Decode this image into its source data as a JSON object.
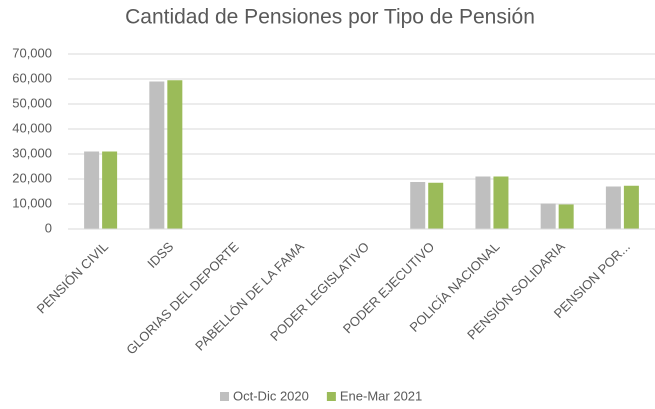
{
  "chart_data": {
    "type": "bar",
    "title": "Cantidad de Pensiones por Tipo de Pensión",
    "categories": [
      "PENSIÓN CIVIL",
      "IDSS",
      "GLORIAS DEL DEPORTE",
      "PABELLÓN DE LA FAMA",
      "PODER LEGISLATIVO",
      "PODER EJECUTIVO",
      "POLICÍA NACIONAL",
      "PENSIÓN SOLIDARIA",
      "PENSION POR..."
    ],
    "series": [
      {
        "name": "Oct-Dic 2020",
        "color": "#bfbfbf",
        "values": [
          31000,
          59000,
          0,
          0,
          0,
          18800,
          21000,
          10200,
          17000
        ]
      },
      {
        "name": "Ene-Mar 2021",
        "color": "#9bbb59",
        "values": [
          31000,
          59500,
          0,
          0,
          0,
          18500,
          21000,
          9800,
          17300
        ]
      }
    ],
    "ylim": [
      0,
      70000
    ],
    "yticks": [
      0,
      {
        "value": 10000,
        "label": "10,000"
      },
      {
        "value": 20000,
        "label": "20,000"
      },
      {
        "value": 30000,
        "label": "30,000"
      },
      {
        "value": 40000,
        "label": "40,000"
      },
      {
        "value": 50000,
        "label": "50,000"
      },
      {
        "value": 60000,
        "label": "60,000"
      },
      {
        "value": 70000,
        "label": "70,000"
      }
    ],
    "grid": true,
    "legend": "bottom"
  }
}
